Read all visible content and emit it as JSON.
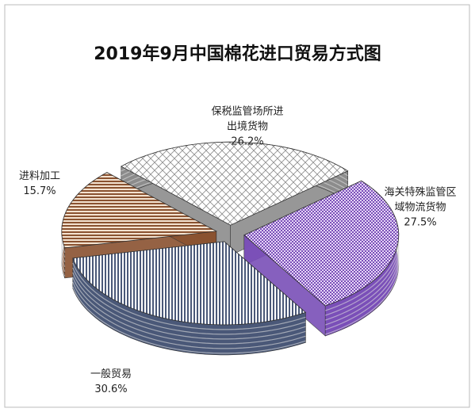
{
  "chart_data": {
    "type": "pie",
    "title": "2019年9月中国棉花进口贸易方式图",
    "categories": [
      "保税监管场所进出境货物",
      "海关特殊监管区域物流货物",
      "一般贸易",
      "进料加工"
    ],
    "values": [
      26.2,
      27.5,
      30.6,
      15.7
    ],
    "value_labels": [
      "26.2%",
      "27.5%",
      "30.6%",
      "15.7%"
    ],
    "colors": [
      "#8c8c8c",
      "#7a4fb8",
      "#4a5878",
      "#8a5230"
    ]
  }
}
